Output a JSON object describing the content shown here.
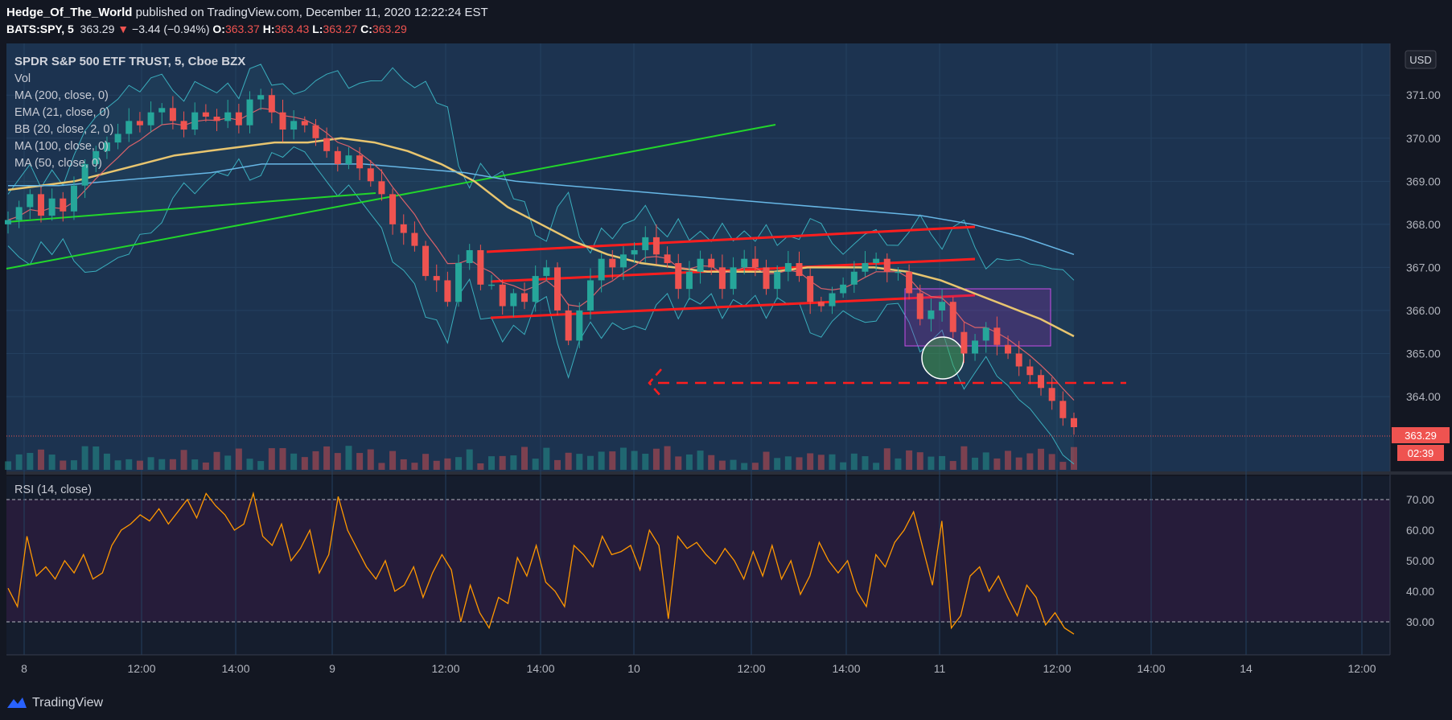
{
  "header": {
    "author": "Hedge_Of_The_World",
    "published": " published on TradingView.com, December 11, 2020 12:22:24 EST",
    "symbol": "BATS:SPY, 5",
    "last": "363.29",
    "change": "−3.44 (−0.94%)",
    "o_label": "O:",
    "o": "363.37",
    "h_label": "H:",
    "h": "363.43",
    "l_label": "L:",
    "l": "363.27",
    "c_label": "C:",
    "c": "363.29"
  },
  "legend": {
    "title": "SPDR S&P 500 ETF TRUST, 5, Cboe BZX",
    "items": [
      "Vol",
      "MA (200, close, 0)",
      "EMA (21, close, 0)",
      "BB (20, close, 2, 0)",
      "MA (100, close, 0)",
      "MA (50, close, 0)"
    ]
  },
  "rsi_label": "RSI (14, close)",
  "currency": "USD",
  "price_badge": "363.29",
  "countdown": "02:39",
  "footer_logo": "TradingView",
  "colors": {
    "bg": "#131722",
    "pane": "#1c3350",
    "rsi_band": "#261c3a",
    "up": "#26a69a",
    "down": "#ef5350",
    "ma50": "#e8c56f",
    "ma200": "#67b7e6",
    "bb": "#3aaebd",
    "ema": "#d9626a",
    "rsi": "#ff9800",
    "trend_green": "#22d62b",
    "channel_red": "#ff1e1e"
  },
  "chart_data": [
    {
      "type": "line",
      "title": "SPDR S&P 500 ETF TRUST, 5, Cboe BZX",
      "ylabel": "USD",
      "y_ticks": [
        364,
        365,
        366,
        367,
        368,
        369,
        370,
        371
      ],
      "x_ticks": [
        "8",
        "12:00",
        "14:00",
        "9",
        "12:00",
        "14:00",
        "10",
        "12:00",
        "14:00",
        "11",
        "12:00",
        "14:00",
        "14",
        "12:00"
      ],
      "ylim": [
        362.3,
        372.2
      ],
      "series": [
        {
          "name": "SPY",
          "values": [
            368.1,
            368.4,
            368.7,
            368.2,
            368.6,
            368.3,
            368.9,
            369.4,
            369.7,
            369.9,
            370.1,
            370.4,
            370.3,
            370.6,
            370.7,
            370.4,
            370.2,
            370.6,
            370.5,
            370.4,
            370.6,
            370.3,
            370.9,
            371.0,
            370.6,
            370.2,
            370.4,
            370.3,
            370.0,
            369.7,
            369.4,
            369.6,
            369.3,
            369.0,
            368.7,
            368.0,
            367.8,
            367.5,
            366.8,
            366.7,
            366.2,
            367.1,
            367.4,
            366.6,
            366.6,
            366.1,
            366.4,
            366.2,
            366.8,
            367.0,
            366.0,
            365.3,
            366.0,
            366.7,
            367.2,
            367.0,
            367.3,
            367.4,
            367.7,
            367.3,
            367.1,
            366.5,
            366.9,
            367.2,
            367.0,
            366.5,
            367.0,
            367.2,
            367.0,
            366.5,
            366.9,
            367.1,
            366.8,
            366.2,
            366.1,
            366.4,
            366.6,
            366.9,
            367.1,
            367.2,
            366.9,
            366.9,
            366.4,
            365.8,
            366.0,
            366.2,
            365.5,
            365.0,
            365.3,
            365.6,
            365.2,
            365.0,
            364.7,
            364.5,
            364.2,
            363.9,
            363.5,
            363.29
          ]
        },
        {
          "name": "MA (50, close, 0)",
          "values": [
            368.8,
            368.9,
            369.0,
            369.2,
            369.4,
            369.6,
            369.7,
            369.8,
            369.9,
            369.9,
            370.0,
            369.9,
            369.7,
            369.4,
            369.0,
            368.4,
            368.0,
            367.6,
            367.3,
            367.1,
            367.0,
            366.9,
            366.9,
            366.9,
            367.0,
            367.0,
            367.0,
            366.9,
            366.7,
            366.4,
            366.1,
            365.8,
            365.4
          ]
        },
        {
          "name": "MA (200, close, 0)",
          "values": [
            368.9,
            368.9,
            369.0,
            369.1,
            369.2,
            369.4,
            369.4,
            369.4,
            369.3,
            369.2,
            369.0,
            368.9,
            368.8,
            368.7,
            368.6,
            368.5,
            368.4,
            368.3,
            368.2,
            368.0,
            367.7,
            367.3
          ]
        }
      ],
      "annotations": [
        "Ascending trend lines",
        "Red channel",
        "Support level ~364.5"
      ]
    },
    {
      "type": "line",
      "title": "RSI (14, close)",
      "y_ticks": [
        30,
        40,
        50,
        60,
        70
      ],
      "ylim": [
        23,
        74
      ],
      "levels": [
        70,
        30
      ],
      "series": [
        {
          "name": "RSI (14, close)",
          "values": [
            41,
            35,
            58,
            45,
            48,
            44,
            50,
            46,
            52,
            44,
            46,
            55,
            60,
            62,
            65,
            63,
            67,
            62,
            66,
            70,
            64,
            72,
            68,
            65,
            60,
            62,
            72,
            58,
            55,
            62,
            50,
            54,
            60,
            46,
            52,
            71,
            60,
            54,
            48,
            44,
            50,
            40,
            42,
            48,
            38,
            46,
            52,
            47,
            30,
            42,
            33,
            28,
            38,
            36,
            51,
            45,
            55,
            43,
            40,
            35,
            55,
            52,
            48,
            58,
            52,
            53,
            55,
            47,
            60,
            55,
            31,
            58,
            54,
            56,
            52,
            49,
            54,
            50,
            44,
            53,
            45,
            55,
            44,
            50,
            39,
            45,
            56,
            50,
            46,
            50,
            40,
            35,
            52,
            48,
            56,
            60,
            66,
            54,
            42,
            63,
            28,
            32,
            45,
            48,
            40,
            45,
            38,
            32,
            42,
            38,
            29,
            33,
            28,
            26
          ]
        }
      ]
    }
  ]
}
